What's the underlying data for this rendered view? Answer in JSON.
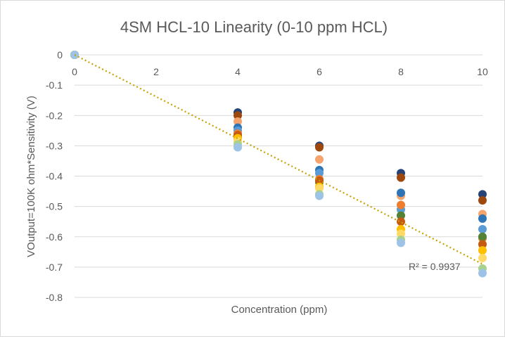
{
  "chart_data": {
    "type": "scatter",
    "title": "4SM HCL-10 Linearity (0-10 ppm HCL)",
    "xlabel": "Concentration (ppm)",
    "ylabel": "VOutput=100K ohm*Sensitivity (V)",
    "xlim": [
      0,
      10
    ],
    "ylim": [
      -0.8,
      0
    ],
    "xticks": [
      "0",
      "2",
      "4",
      "6",
      "8",
      "10"
    ],
    "yticks": [
      "0",
      "-0.1",
      "-0.2",
      "-0.3",
      "-0.4",
      "-0.5",
      "-0.6",
      "-0.7",
      "-0.8"
    ],
    "grid": true,
    "x": [
      0,
      4,
      6,
      8,
      10
    ],
    "series": [
      {
        "color": "#264478",
        "values": [
          0,
          -0.19,
          -0.3,
          -0.39,
          -0.46
        ]
      },
      {
        "color": "#9E480E",
        "values": [
          0,
          -0.2,
          -0.305,
          -0.405,
          -0.48
        ]
      },
      {
        "color": "#F4A46C",
        "values": [
          0,
          -0.22,
          -0.345,
          -0.465,
          -0.525
        ]
      },
      {
        "color": "#2E75B6",
        "values": [
          0,
          -0.24,
          -0.38,
          -0.455,
          -0.54
        ]
      },
      {
        "color": "#5B9BD5",
        "values": [
          0,
          -0.25,
          -0.39,
          -0.51,
          -0.575
        ]
      },
      {
        "color": "#ED7D31",
        "values": [
          0,
          -0.26,
          -0.41,
          -0.495,
          -0.605
        ]
      },
      {
        "color": "#548235",
        "values": [
          0,
          -0.27,
          -0.42,
          -0.53,
          -0.6
        ]
      },
      {
        "color": "#C55A11",
        "values": [
          0,
          -0.265,
          -0.415,
          -0.55,
          -0.625
        ]
      },
      {
        "color": "#FFC000",
        "values": [
          0,
          -0.275,
          -0.435,
          -0.575,
          -0.645
        ]
      },
      {
        "color": "#FFD966",
        "values": [
          0,
          -0.285,
          -0.44,
          -0.59,
          -0.67
        ]
      },
      {
        "color": "#A9D18E",
        "values": [
          0,
          -0.295,
          -0.46,
          -0.61,
          -0.705
        ]
      },
      {
        "color": "#9DC3E6",
        "values": [
          0,
          -0.305,
          -0.465,
          -0.62,
          -0.72
        ]
      }
    ],
    "trendline": {
      "type": "linear",
      "slope": -0.069,
      "intercept": 0,
      "color": "#C9A000",
      "label": "R² = 0.9937"
    }
  }
}
